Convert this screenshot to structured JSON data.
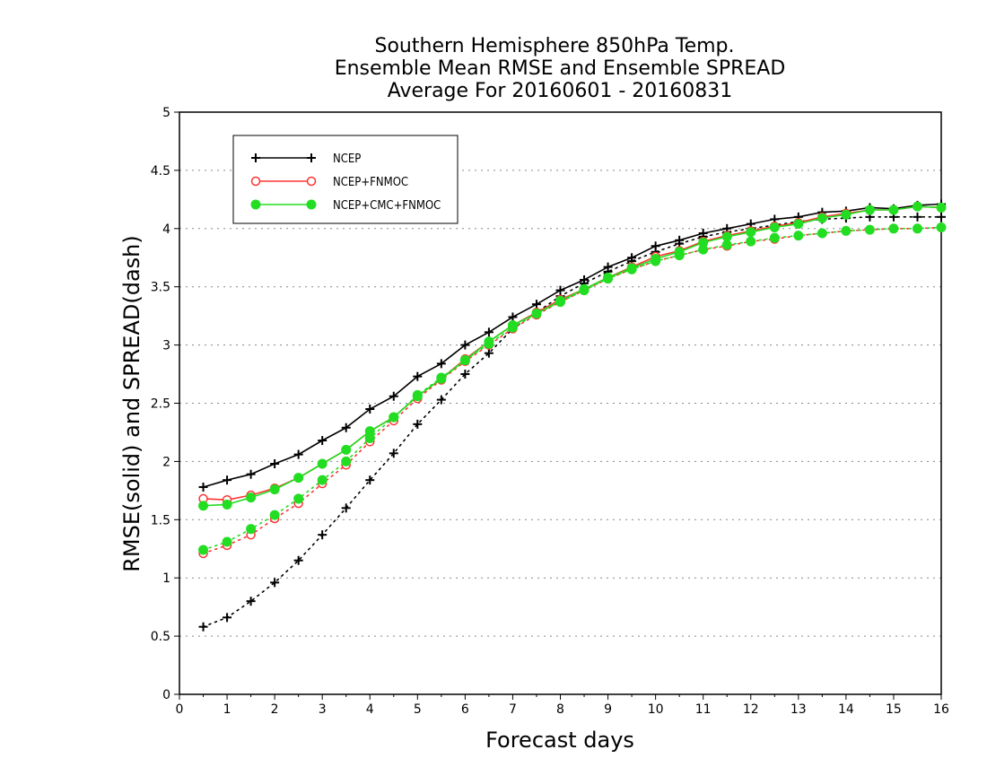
{
  "chart_data": {
    "type": "line",
    "title_lines": [
      "Southern Hemisphere 850hPa Temp.",
      "Ensemble Mean RMSE and Ensemble SPREAD",
      "Average For 20160601 - 20160831"
    ],
    "xlabel": "Forecast days",
    "ylabel": "RMSE(solid) and SPREAD(dash)",
    "xlim": [
      0,
      16
    ],
    "ylim": [
      0,
      5
    ],
    "x_ticks": [
      "0",
      "1",
      "2",
      "3",
      "4",
      "5",
      "6",
      "7",
      "8",
      "9",
      "10",
      "11",
      "12",
      "13",
      "14",
      "15",
      "16"
    ],
    "y_ticks": [
      "0",
      "0.5",
      "1",
      "1.5",
      "2",
      "2.5",
      "3",
      "3.5",
      "4",
      "4.5",
      "5"
    ],
    "grid": "horizontal dotted",
    "legend_position": "top-left",
    "x": [
      0.5,
      1,
      1.5,
      2,
      2.5,
      3,
      3.5,
      4,
      4.5,
      5,
      5.5,
      6,
      6.5,
      7,
      7.5,
      8,
      8.5,
      9,
      9.5,
      10,
      10.5,
      11,
      11.5,
      12,
      12.5,
      13,
      13.5,
      14,
      14.5,
      15,
      15.5,
      16
    ],
    "series": [
      {
        "name": "NCEP",
        "color": "#000000",
        "marker": "plus",
        "rmse": [
          1.78,
          1.84,
          1.89,
          1.98,
          2.06,
          2.18,
          2.29,
          2.45,
          2.56,
          2.73,
          2.84,
          3.0,
          3.11,
          3.24,
          3.35,
          3.47,
          3.56,
          3.67,
          3.75,
          3.85,
          3.9,
          3.96,
          4.0,
          4.04,
          4.08,
          4.1,
          4.14,
          4.15,
          4.18,
          4.17,
          4.2,
          4.21
        ],
        "spread": [
          0.58,
          0.66,
          0.8,
          0.96,
          1.15,
          1.37,
          1.6,
          1.84,
          2.07,
          2.32,
          2.53,
          2.75,
          2.93,
          3.14,
          3.28,
          3.42,
          3.53,
          3.63,
          3.72,
          3.8,
          3.87,
          3.93,
          3.97,
          4.0,
          4.03,
          4.06,
          4.08,
          4.09,
          4.1,
          4.1,
          4.1,
          4.1
        ]
      },
      {
        "name": "NCEP+FNMOC",
        "color": "#ff3333",
        "marker": "open-circle",
        "rmse": [
          1.68,
          1.67,
          1.71,
          1.77,
          1.86,
          1.98,
          2.1,
          2.26,
          2.38,
          2.56,
          2.71,
          2.88,
          3.03,
          3.17,
          3.28,
          3.39,
          3.48,
          3.58,
          3.67,
          3.76,
          3.81,
          3.89,
          3.94,
          3.98,
          4.02,
          4.05,
          4.1,
          4.13,
          4.16,
          4.16,
          4.19,
          4.18
        ],
        "spread": [
          1.21,
          1.28,
          1.37,
          1.51,
          1.64,
          1.81,
          1.97,
          2.17,
          2.35,
          2.54,
          2.7,
          2.86,
          3.0,
          3.14,
          3.26,
          3.37,
          3.47,
          3.57,
          3.65,
          3.72,
          3.77,
          3.82,
          3.85,
          3.89,
          3.91,
          3.94,
          3.96,
          3.98,
          3.99,
          4.0,
          4.0,
          4.01
        ]
      },
      {
        "name": "NCEP+CMC+FNMOC",
        "color": "#22dd22",
        "marker": "filled-circle",
        "rmse": [
          1.62,
          1.63,
          1.69,
          1.76,
          1.86,
          1.98,
          2.1,
          2.26,
          2.38,
          2.56,
          2.71,
          2.87,
          3.03,
          3.17,
          3.27,
          3.38,
          3.48,
          3.58,
          3.66,
          3.74,
          3.8,
          3.88,
          3.93,
          3.97,
          4.01,
          4.04,
          4.09,
          4.12,
          4.16,
          4.16,
          4.19,
          4.18
        ],
        "spread": [
          1.24,
          1.31,
          1.42,
          1.54,
          1.68,
          1.84,
          2.0,
          2.2,
          2.38,
          2.57,
          2.72,
          2.87,
          3.01,
          3.15,
          3.27,
          3.37,
          3.47,
          3.57,
          3.65,
          3.72,
          3.77,
          3.82,
          3.86,
          3.89,
          3.92,
          3.94,
          3.96,
          3.98,
          3.99,
          4.0,
          4.0,
          4.01
        ]
      }
    ]
  }
}
